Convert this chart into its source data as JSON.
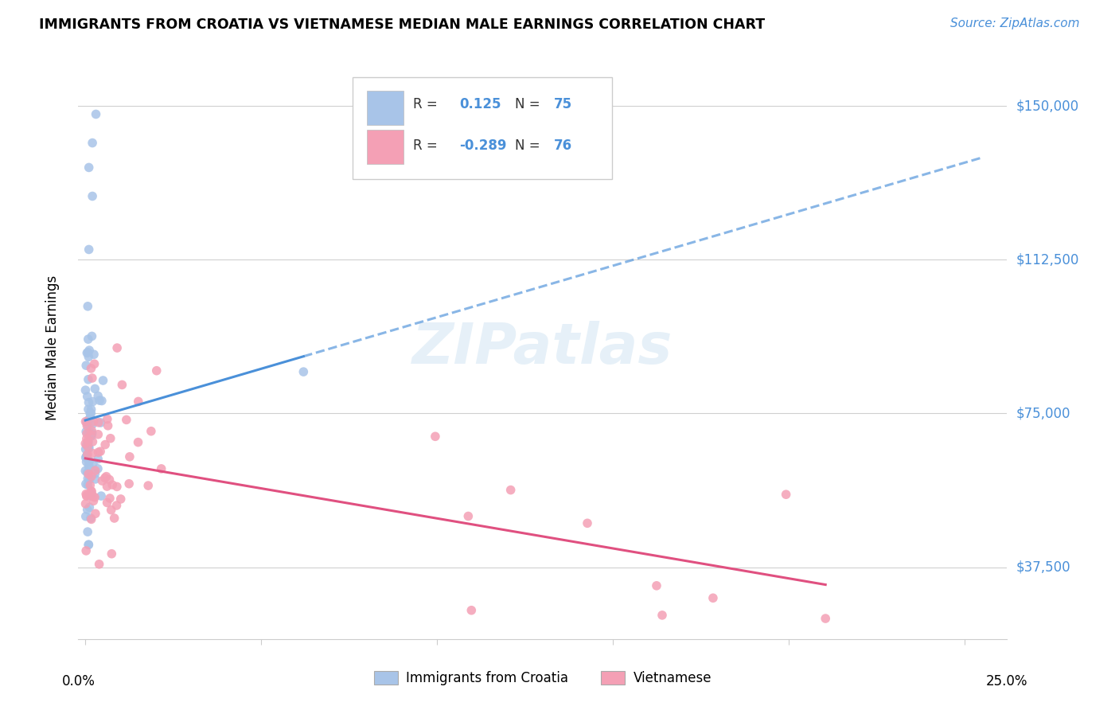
{
  "title": "IMMIGRANTS FROM CROATIA VS VIETNAMESE MEDIAN MALE EARNINGS CORRELATION CHART",
  "source": "Source: ZipAtlas.com",
  "ylabel": "Median Male Earnings",
  "ytick_labels": [
    "$37,500",
    "$75,000",
    "$112,500",
    "$150,000"
  ],
  "ytick_values": [
    37500,
    75000,
    112500,
    150000
  ],
  "ymin": 20000,
  "ymax": 162000,
  "xmin": -0.002,
  "xmax": 0.262,
  "croatia_color": "#a8c4e8",
  "vietnamese_color": "#f4a0b5",
  "croatia_line_color": "#4a90d9",
  "vietnamese_line_color": "#e05080",
  "croatia_R": 0.125,
  "croatian_N": 75,
  "vietnamese_R": -0.289,
  "vietnamese_N": 76,
  "watermark": "ZIPatlas",
  "legend_entries": [
    "Immigrants from Croatia",
    "Vietnamese"
  ]
}
